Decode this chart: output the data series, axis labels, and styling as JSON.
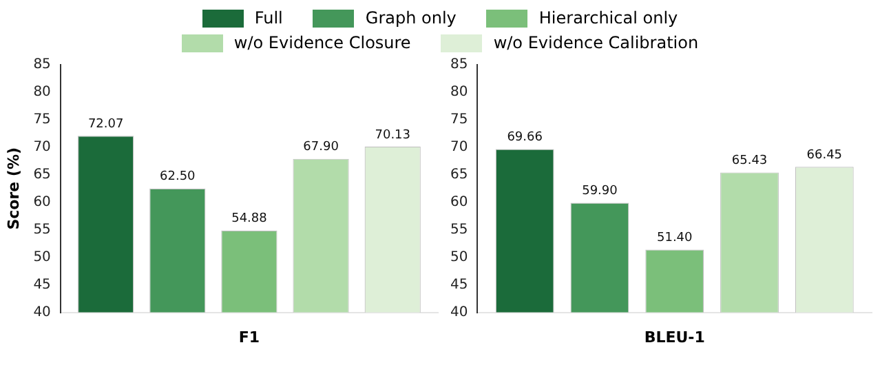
{
  "chart_data": [
    {
      "type": "bar",
      "xlabel": "F1",
      "ylabel": "Score (%)",
      "categories": [
        null
      ],
      "ylim": [
        40,
        85
      ],
      "yticks": [
        40,
        45,
        50,
        55,
        60,
        65,
        70,
        75,
        80,
        85
      ],
      "grid": false,
      "legend": "top",
      "series": [
        {
          "name": "Full",
          "color": "#1b6b3a",
          "values": [
            72.07
          ],
          "value_labels": [
            "72.07"
          ]
        },
        {
          "name": "Graph only",
          "color": "#44975a",
          "values": [
            62.5
          ],
          "value_labels": [
            "62.50"
          ]
        },
        {
          "name": "Hierarchical only",
          "color": "#7bbf7a",
          "values": [
            54.88
          ],
          "value_labels": [
            "54.88"
          ]
        },
        {
          "name": "w/o Evidence Closure",
          "color": "#b2dcaa",
          "values": [
            67.9
          ],
          "value_labels": [
            "67.90"
          ]
        },
        {
          "name": "w/o Evidence Calibration",
          "color": "#deefd7",
          "values": [
            70.13
          ],
          "value_labels": [
            "70.13"
          ]
        }
      ]
    },
    {
      "type": "bar",
      "xlabel": "BLEU-1",
      "categories": [
        null
      ],
      "ylim": [
        40,
        85
      ],
      "yticks": [
        40,
        45,
        50,
        55,
        60,
        65,
        70,
        75,
        80,
        85
      ],
      "grid": false,
      "series": [
        {
          "color": "#1b6b3a",
          "values": [
            69.66
          ],
          "value_labels": [
            "69.66"
          ]
        },
        {
          "color": "#44975a",
          "values": [
            59.9
          ],
          "value_labels": [
            "59.90"
          ]
        },
        {
          "color": "#7bbf7a",
          "values": [
            51.4
          ],
          "value_labels": [
            "51.40"
          ]
        },
        {
          "color": "#b2dcaa",
          "values": [
            65.43
          ],
          "value_labels": [
            "65.43"
          ]
        },
        {
          "color": "#deefd7",
          "values": [
            66.45
          ],
          "value_labels": [
            "66.45"
          ]
        }
      ]
    }
  ]
}
